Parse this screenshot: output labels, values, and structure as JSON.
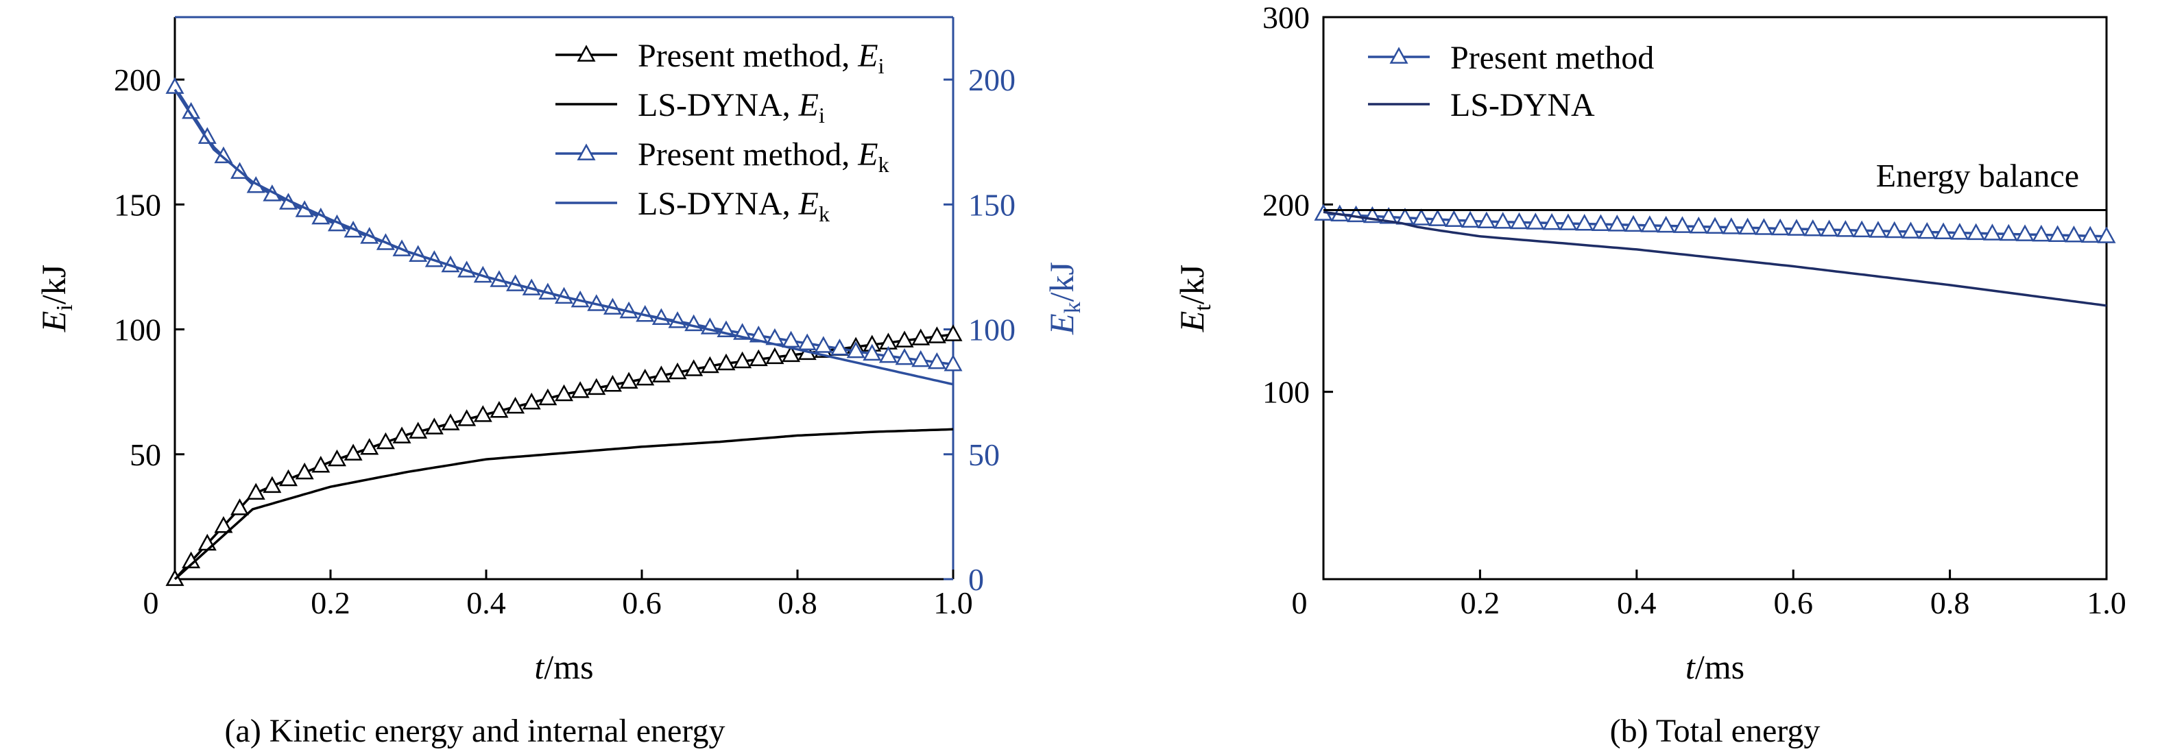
{
  "chart_data": [
    {
      "type": "line",
      "caption": "(a) Kinetic energy and internal energy",
      "xlabel": {
        "var": "t",
        "unit": "/ms"
      },
      "ylabel_left": {
        "var": "E",
        "sub": "i",
        "unit": "/kJ"
      },
      "ylabel_right": {
        "var": "E",
        "sub": "k",
        "unit": "/kJ"
      },
      "xlim": [
        0,
        1.0
      ],
      "ylim_left": [
        0,
        225
      ],
      "ylim_right": [
        0,
        225
      ],
      "x_ticks": [
        0,
        0.2,
        0.4,
        0.6,
        0.8,
        1.0
      ],
      "x_tick_labels": [
        "0",
        "0.2",
        "0.4",
        "0.6",
        "0.8",
        "1.0"
      ],
      "y_ticks_left": [
        50,
        100,
        150,
        200
      ],
      "y_tick_labels_left": [
        "50",
        "100",
        "150",
        "200"
      ],
      "y_ticks_right": [
        0,
        50,
        100,
        150,
        200
      ],
      "y_tick_labels_right": [
        "0",
        "50",
        "100",
        "150",
        "200"
      ],
      "legend_position": "top-right",
      "series": [
        {
          "name": "Present method",
          "sub": "i",
          "legend_prefix": "Present method, ",
          "legend_var": "E",
          "color": "#000000",
          "marker": "triangle",
          "axis": "left",
          "x": [
            0,
            0.1,
            0.2,
            0.3,
            0.4,
            0.5,
            0.6,
            0.7,
            0.8,
            0.9,
            1.0
          ],
          "y": [
            0,
            34,
            47,
            58,
            66,
            74,
            80,
            86,
            90,
            94,
            98
          ]
        },
        {
          "name": "LS-DYNA",
          "sub": "i",
          "legend_prefix": "LS-DYNA, ",
          "legend_var": "E",
          "color": "#000000",
          "marker": "none",
          "axis": "left",
          "x": [
            0,
            0.1,
            0.2,
            0.3,
            0.4,
            0.5,
            0.6,
            0.7,
            0.8,
            0.9,
            1.0
          ],
          "y": [
            0,
            28,
            37,
            43,
            48,
            50.5,
            53,
            55,
            57.5,
            59,
            60
          ]
        },
        {
          "name": "Present method",
          "sub": "k",
          "legend_prefix": "Present method, ",
          "legend_var": "E",
          "color": "#2d4f9e",
          "marker": "triangle",
          "axis": "right",
          "x": [
            0,
            0.05,
            0.1,
            0.15,
            0.2,
            0.3,
            0.4,
            0.5,
            0.6,
            0.7,
            0.8,
            0.9,
            1.0
          ],
          "y": [
            197,
            173,
            158,
            150,
            143,
            131,
            121,
            113,
            106,
            100,
            95,
            90,
            86
          ]
        },
        {
          "name": "LS-DYNA",
          "sub": "k",
          "legend_prefix": "LS-DYNA, ",
          "legend_var": "E",
          "color": "#2d4f9e",
          "marker": "none",
          "axis": "right",
          "x": [
            0,
            0.05,
            0.1,
            0.15,
            0.2,
            0.3,
            0.4,
            0.5,
            0.6,
            0.7,
            0.8,
            0.9,
            1.0
          ],
          "y": [
            196,
            172,
            159,
            151,
            144,
            131,
            121,
            113,
            106,
            99,
            92,
            85,
            78
          ]
        }
      ]
    },
    {
      "type": "line",
      "caption": "(b) Total energy",
      "xlabel": {
        "var": "t",
        "unit": "/ms"
      },
      "ylabel": {
        "var": "E",
        "sub": "t",
        "unit": "/kJ"
      },
      "xlim": [
        0,
        1.0
      ],
      "ylim": [
        0,
        300
      ],
      "x_ticks": [
        0,
        0.2,
        0.4,
        0.6,
        0.8,
        1.0
      ],
      "x_tick_labels": [
        "0",
        "0.2",
        "0.4",
        "0.6",
        "0.8",
        "1.0"
      ],
      "y_ticks": [
        0,
        100,
        200,
        300
      ],
      "y_tick_labels": [
        "0",
        "100",
        "200",
        "300"
      ],
      "legend_position": "top-left",
      "annotation": {
        "text": "Energy balance",
        "y": 197
      },
      "series": [
        {
          "name": "Present method",
          "color": "#2d4f9e",
          "marker": "triangle",
          "x": [
            0,
            0.2,
            0.4,
            0.6,
            0.8,
            1.0
          ],
          "y": [
            195,
            191,
            189,
            187,
            185,
            183
          ]
        },
        {
          "name": "LS-DYNA",
          "color": "#1e2d66",
          "marker": "none",
          "x": [
            0,
            0.1,
            0.12,
            0.15,
            0.2,
            0.4,
            0.6,
            0.8,
            1.0
          ],
          "y": [
            196,
            190,
            188,
            186,
            183,
            176,
            167,
            157,
            146
          ]
        },
        {
          "name": "Energy balance",
          "color": "#000000",
          "marker": "none",
          "is_reference": true,
          "x": [
            0,
            1.0
          ],
          "y": [
            197,
            197
          ]
        }
      ]
    }
  ]
}
